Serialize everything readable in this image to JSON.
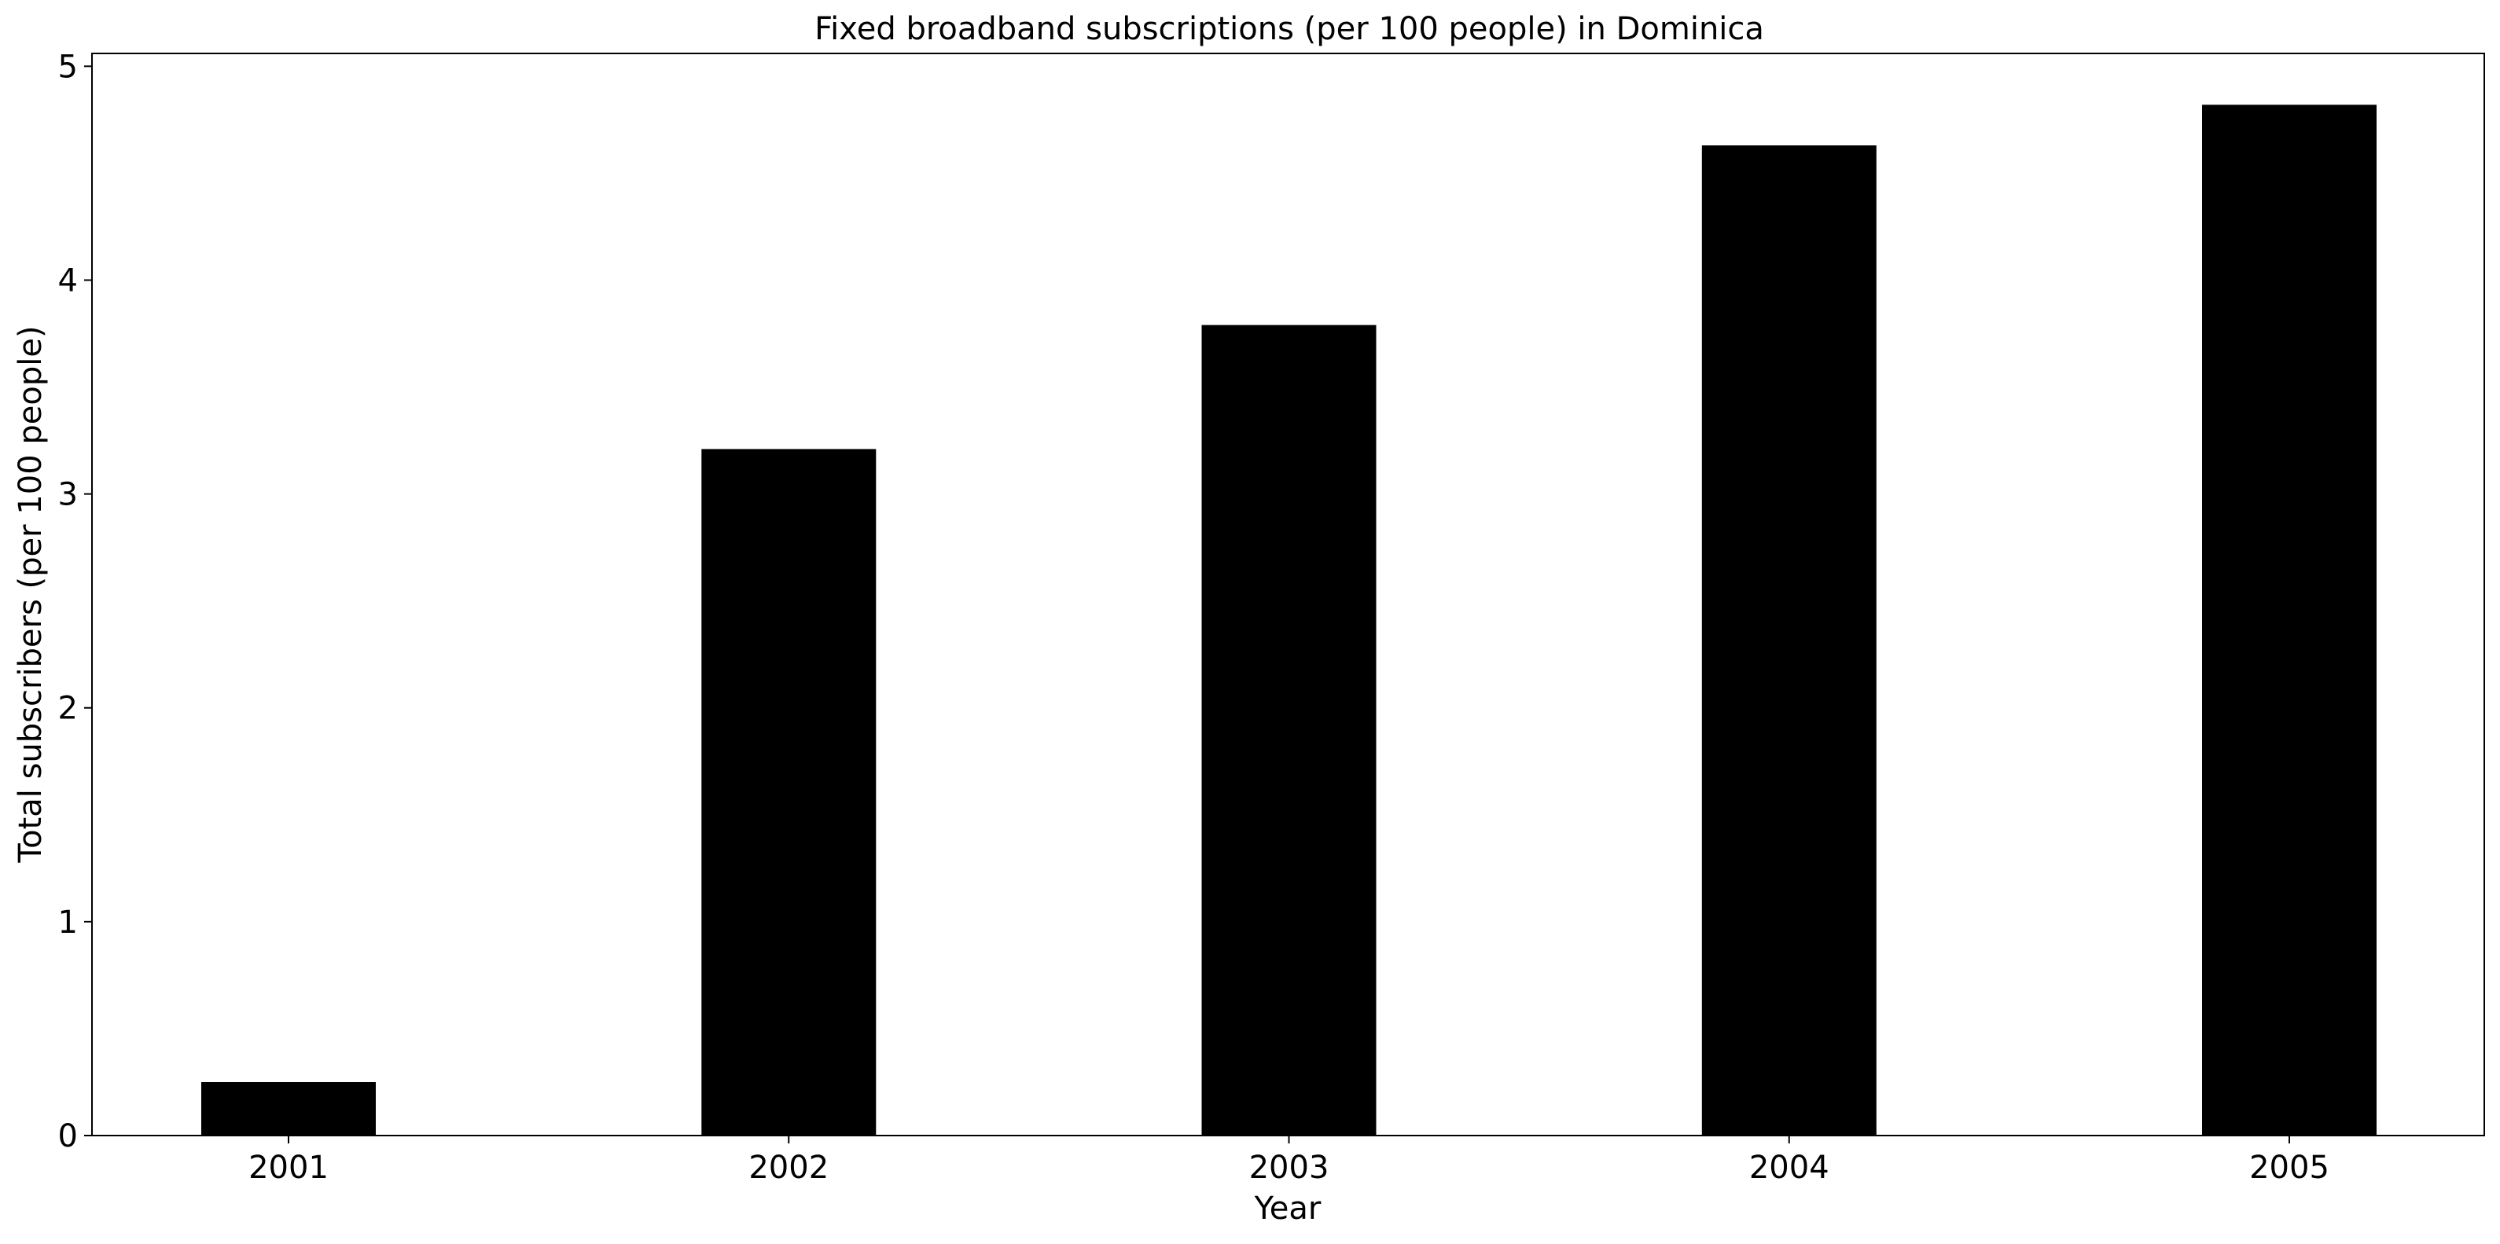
{
  "chart_data": {
    "type": "bar",
    "title": "Fixed broadband subscriptions (per 100 people) in Dominica",
    "xlabel": "Year",
    "ylabel": "Total subscribers (per 100 people)",
    "categories": [
      "2001",
      "2002",
      "2003",
      "2004",
      "2005"
    ],
    "values": [
      0.25,
      3.21,
      3.79,
      4.63,
      4.82
    ],
    "ylim": [
      0,
      5.06
    ],
    "yticks": [
      0,
      1,
      2,
      3,
      4,
      5
    ],
    "grid": false,
    "bar_color": "#000000"
  }
}
